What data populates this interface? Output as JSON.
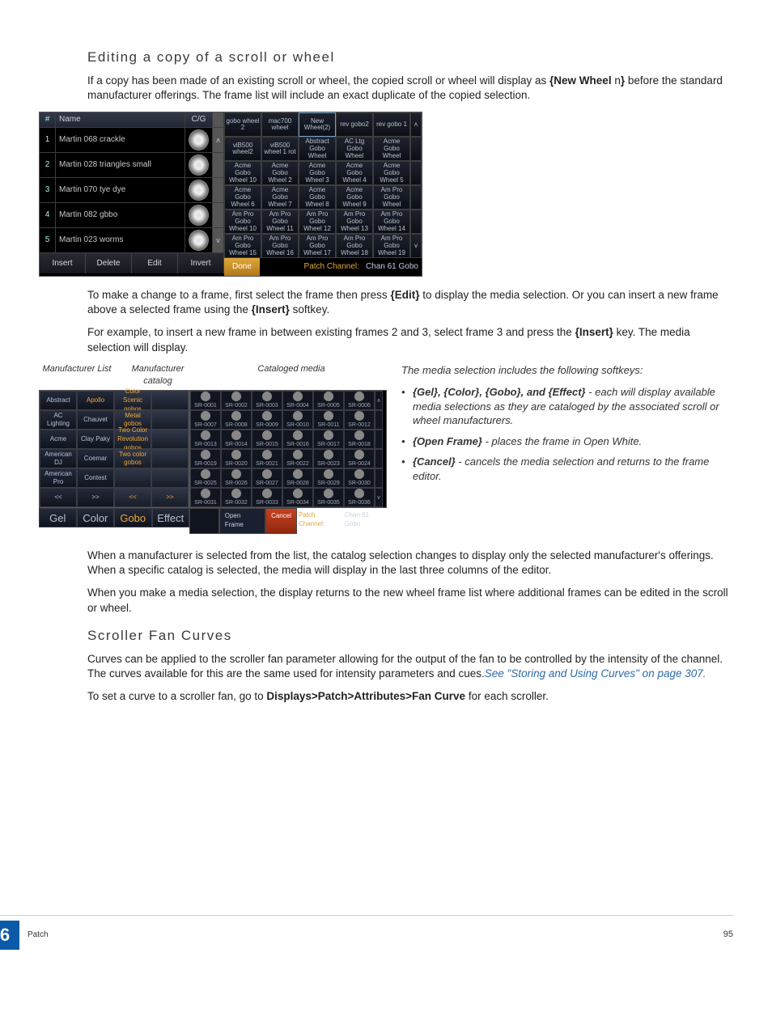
{
  "heading1": "Editing a copy of a scroll or wheel",
  "para1_a": "If a copy has been made of an existing scroll or wheel, the copied scroll or wheel will display as ",
  "para1_b": "{New Wheel ",
  "para1_c": "n",
  "para1_d": "} ",
  "para1_e": "before the standard manufacturer offerings. The frame list will include an exact duplicate of the copied selection.",
  "frameEditor": {
    "head": {
      "num": "#",
      "name": "Name",
      "cg": "C/G"
    },
    "rows": [
      {
        "n": "1",
        "name": "Martin 068 crackle"
      },
      {
        "n": "2",
        "name": "Martin 028 triangles small"
      },
      {
        "n": "3",
        "name": "Martin 070 tye dye"
      },
      {
        "n": "4",
        "name": "Martin 082 gbbo"
      },
      {
        "n": "5",
        "name": "Martin 023 worms"
      }
    ],
    "scrollUp": "ᴧ",
    "scrollDn": "v",
    "btns": [
      "Insert",
      "Delete",
      "Edit",
      "Invert"
    ],
    "gridTop": [
      [
        "gobo wheel 2",
        "mac700 wheel",
        "New Wheel(2)",
        "rev gobo2",
        "rev gobo 1",
        "ᴧ"
      ],
      [
        "viB500 wheel2",
        "viB500 wheel 1 rot",
        "Abstract Gobo Wheel",
        "AC Ltg Gobo Wheel",
        "Acme Gobo Wheel",
        ""
      ],
      [
        "Acme Gobo Wheel 10",
        "Acme Gobo Wheel 2",
        "Acme Gobo Wheel 3",
        "Acme Gobo Wheel 4",
        "Acme Gobo Wheel 5",
        ""
      ],
      [
        "Acme Gobo Wheel 6",
        "Acme Gobo Wheel 7",
        "Acme Gobo Wheel 8",
        "Acme Gobo Wheel 9",
        "Am Pro Gobo Wheel",
        ""
      ],
      [
        "Am Pro Gobo Wheel 10",
        "Am Pro Gobo Wheel 11",
        "Am Pro Gobo Wheel 12",
        "Am Pro Gobo Wheel 13",
        "Am Pro Gobo Wheel 14",
        ""
      ],
      [
        "Am Pro Gobo Wheel 15",
        "Am Pro Gobo Wheel 16",
        "Am Pro Gobo Wheel 17",
        "Am Pro Gobo Wheel 18",
        "Am Pro Gobo Wheel 19",
        "v"
      ]
    ],
    "done": "Done",
    "patchLabel": "Patch Channel:",
    "patchVal": "Chan 61 Gobo"
  },
  "para2_a": "To make a change to a frame, first select the frame then press ",
  "para2_b": "{Edit}",
  "para2_c": " to display the media selection. Or you can insert a new frame above a selected frame using the ",
  "para2_d": "{Insert}",
  "para2_e": " softkey.",
  "para3_a": "For example, to insert a new frame in between existing frames 2 and 3, select frame 3 and press the ",
  "para3_b": "{Insert}",
  "para3_c": " key. The media selection will display.",
  "mediaLabels": {
    "l1": "Manufacturer List",
    "l2": "Manufacturer catalog",
    "l3": "Cataloged media"
  },
  "mfrList": [
    [
      "Abstract",
      "Apollo",
      "Color Scenic gobos",
      ""
    ],
    [
      "AC Lighting",
      "Chauvet",
      "Metal gobos",
      ""
    ],
    [
      "Acme",
      "Clay Paky",
      "Two Color Revolution gobos",
      ""
    ],
    [
      "American DJ",
      "Coemar",
      "Two color gobos",
      ""
    ],
    [
      "American Pro",
      "Contest",
      "",
      ""
    ],
    [
      "<<",
      ">>",
      "<<",
      ">>"
    ]
  ],
  "mfrBtns": [
    "Gel",
    "Color",
    "Gobo",
    "Effect"
  ],
  "catGrid": [
    [
      "SR-0001",
      "SR-0002",
      "SR-0003",
      "SR-0004",
      "SR-0005",
      "SR-0006",
      "ᴧ"
    ],
    [
      "SR-0007",
      "SR-0008",
      "SR-0009",
      "SR-0010",
      "SR-0011",
      "SR-0012",
      ""
    ],
    [
      "SR-0013",
      "SR-0014",
      "SR-0015",
      "SR-0016",
      "SR-0017",
      "SR-0018",
      ""
    ],
    [
      "SR-0019",
      "SR-0020",
      "SR-0021",
      "SR-0022",
      "SR-0023",
      "SR-0024",
      ""
    ],
    [
      "SR-0025",
      "SR-0026",
      "SR-0027",
      "SR-0028",
      "SR-0029",
      "SR-0030",
      ""
    ],
    [
      "SR-0031",
      "SR-0032",
      "SR-0033",
      "SR-0034",
      "SR-0035",
      "SR-0036",
      "v"
    ]
  ],
  "catBtns": {
    "open": "Open Frame",
    "cancel": "Cancel",
    "pc": "Patch Channel:",
    "ch": "Chan 61 Gobo"
  },
  "softIntro": "The media selection includes the following softkeys:",
  "soft": [
    {
      "k": "{Gel}, {Color}, {Gobo}, and {Effect}",
      "t": " - each will display available media selections as they are cataloged by the associated scroll or wheel manufacturers."
    },
    {
      "k": "{Open Frame}",
      "t": " - places the frame in Open White."
    },
    {
      "k": "{Cancel}",
      "t": " - cancels the media selection and returns to the frame editor."
    }
  ],
  "para4": "When a manufacturer is selected from the list, the catalog selection changes to display only the selected manufacturer's offerings. When a specific catalog is selected, the media will display in the last three columns of the editor.",
  "para5": "When you make a media selection, the display returns to the new wheel frame list where additional frames can be edited in the scroll or wheel.",
  "heading2": "Scroller Fan Curves",
  "para6_a": "Curves can be applied to the scroller fan parameter allowing for the output of the fan to be controlled by the intensity of the channel. The curves available for this are the same used for intensity parameters and cues.",
  "xref": "See \"Storing and Using Curves\" on page 307.",
  "para7_a": "To set a curve to a scroller fan, go to ",
  "para7_b": "Displays>Patch>Attributes>Fan Curve",
  "para7_c": " for each scroller.",
  "footer": {
    "chapter": "6",
    "label": "Patch",
    "page": "95"
  }
}
